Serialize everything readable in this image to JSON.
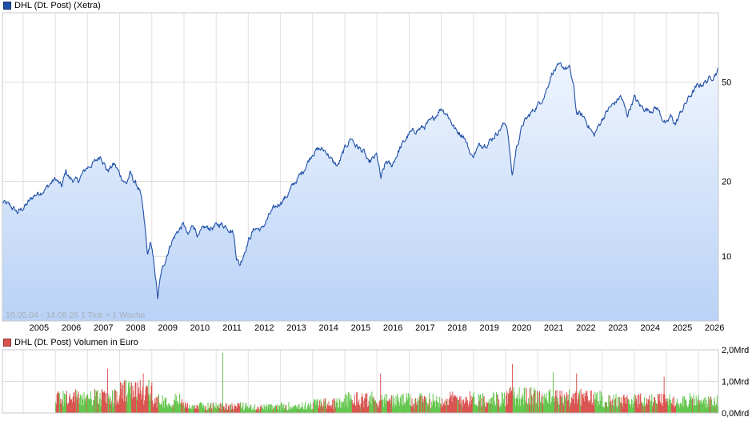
{
  "chart_data": [
    {
      "type": "area",
      "series": [
        {
          "name": "DHL (Dt. Post) (Xetra)",
          "color": "#1f4fa8",
          "points": [
            [
              "2004-05-10",
              16.5
            ],
            [
              "2004-08-01",
              16.0
            ],
            [
              "2004-11-01",
              15.0
            ],
            [
              "2005-02-01",
              16.0
            ],
            [
              "2005-05-01",
              17.5
            ],
            [
              "2005-09-01",
              18.5
            ],
            [
              "2006-01-01",
              20.5
            ],
            [
              "2006-03-15",
              19.0
            ],
            [
              "2006-05-01",
              22.0
            ],
            [
              "2006-06-15",
              20.5
            ],
            [
              "2006-09-15",
              20.0
            ],
            [
              "2006-12-15",
              22.5
            ],
            [
              "2007-04-01",
              24.0
            ],
            [
              "2007-06-01",
              25.5
            ],
            [
              "2007-08-15",
              22.0
            ],
            [
              "2007-11-01",
              23.5
            ],
            [
              "2008-01-15",
              21.0
            ],
            [
              "2008-03-15",
              19.5
            ],
            [
              "2008-05-01",
              21.5
            ],
            [
              "2008-06-15",
              20.0
            ],
            [
              "2008-08-15",
              18.5
            ],
            [
              "2008-09-15",
              16.0
            ],
            [
              "2008-10-15",
              13.0
            ],
            [
              "2008-11-15",
              10.0
            ],
            [
              "2008-12-15",
              11.5
            ],
            [
              "2009-02-01",
              9.0
            ],
            [
              "2009-03-09",
              6.8
            ],
            [
              "2009-04-15",
              8.5
            ],
            [
              "2009-06-15",
              10.0
            ],
            [
              "2009-08-15",
              11.5
            ],
            [
              "2009-10-15",
              12.5
            ],
            [
              "2009-12-31",
              13.5
            ],
            [
              "2010-02-15",
              12.0
            ],
            [
              "2010-04-15",
              13.5
            ],
            [
              "2010-06-15",
              12.0
            ],
            [
              "2010-08-15",
              13.0
            ],
            [
              "2010-11-15",
              13.0
            ],
            [
              "2011-02-15",
              13.5
            ],
            [
              "2011-05-01",
              13.2
            ],
            [
              "2011-07-15",
              12.5
            ],
            [
              "2011-08-20",
              10.0
            ],
            [
              "2011-09-25",
              9.2
            ],
            [
              "2011-12-31",
              11.5
            ],
            [
              "2012-03-15",
              13.0
            ],
            [
              "2012-06-01",
              12.8
            ],
            [
              "2012-09-15",
              15.0
            ],
            [
              "2012-12-31",
              16.5
            ],
            [
              "2013-03-15",
              17.5
            ],
            [
              "2013-06-01",
              19.5
            ],
            [
              "2013-09-15",
              22.0
            ],
            [
              "2013-12-31",
              26.0
            ],
            [
              "2014-03-15",
              27.0
            ],
            [
              "2014-06-01",
              26.5
            ],
            [
              "2014-08-15",
              24.0
            ],
            [
              "2014-10-15",
              23.0
            ],
            [
              "2014-12-31",
              27.0
            ],
            [
              "2015-03-15",
              30.0
            ],
            [
              "2015-05-01",
              28.0
            ],
            [
              "2015-08-15",
              26.0
            ],
            [
              "2015-09-25",
              23.5
            ],
            [
              "2015-12-31",
              25.5
            ],
            [
              "2016-02-15",
              20.5
            ],
            [
              "2016-04-15",
              24.0
            ],
            [
              "2016-06-15",
              23.0
            ],
            [
              "2016-09-15",
              27.0
            ],
            [
              "2016-12-31",
              31.0
            ],
            [
              "2017-03-15",
              32.0
            ],
            [
              "2017-06-15",
              33.0
            ],
            [
              "2017-09-15",
              35.0
            ],
            [
              "2017-12-31",
              39.5
            ],
            [
              "2018-03-15",
              37.0
            ],
            [
              "2018-06-15",
              32.0
            ],
            [
              "2018-09-15",
              30.5
            ],
            [
              "2018-12-15",
              25.0
            ],
            [
              "2019-03-15",
              28.0
            ],
            [
              "2019-06-15",
              28.5
            ],
            [
              "2019-09-15",
              31.0
            ],
            [
              "2019-12-31",
              34.5
            ],
            [
              "2020-01-20",
              33.0
            ],
            [
              "2020-03-16",
              21.0
            ],
            [
              "2020-05-01",
              27.0
            ],
            [
              "2020-07-15",
              34.0
            ],
            [
              "2020-10-15",
              37.5
            ],
            [
              "2020-12-31",
              40.5
            ],
            [
              "2021-03-15",
              44.0
            ],
            [
              "2021-06-15",
              55.0
            ],
            [
              "2021-09-15",
              58.0
            ],
            [
              "2021-12-31",
              56.5
            ],
            [
              "2022-02-15",
              47.0
            ],
            [
              "2022-03-15",
              38.0
            ],
            [
              "2022-06-15",
              36.0
            ],
            [
              "2022-09-30",
              30.5
            ],
            [
              "2022-12-31",
              35.5
            ],
            [
              "2023-03-15",
              39.0
            ],
            [
              "2023-06-15",
              42.0
            ],
            [
              "2023-08-01",
              44.0
            ],
            [
              "2023-10-15",
              37.0
            ],
            [
              "2023-12-31",
              43.5
            ],
            [
              "2024-03-15",
              40.0
            ],
            [
              "2024-06-15",
              38.5
            ],
            [
              "2024-09-15",
              39.5
            ],
            [
              "2024-12-31",
              33.5
            ],
            [
              "2025-02-15",
              36.5
            ],
            [
              "2025-04-15",
              34.0
            ],
            [
              "2025-06-15",
              38.0
            ],
            [
              "2025-09-15",
              43.5
            ],
            [
              "2025-12-15",
              48.0
            ],
            [
              "2026-03-15",
              50.0
            ],
            [
              "2026-06-15",
              53.0
            ],
            [
              "2026-08-14",
              56.0
            ]
          ]
        }
      ],
      "x_range": [
        "2004-05-10",
        "2026-08-14"
      ],
      "x_tick_labels": [
        "2005",
        "2006",
        "2007",
        "2008",
        "2009",
        "2010",
        "2011",
        "2012",
        "2013",
        "2014",
        "2015",
        "2016",
        "2017",
        "2018",
        "2019",
        "2020",
        "2021",
        "2022",
        "2023",
        "2024",
        "2025",
        "2026"
      ],
      "y_scale": "log",
      "y_range": [
        5.5,
        95
      ],
      "y_ticks": [
        10,
        20,
        50
      ],
      "y_tick_labels": [
        "10",
        "20",
        "50"
      ],
      "grid": true,
      "legend_position": "top-left",
      "annotation": "10.05.04 - 14.08.26   1 Tick = 1 Woche",
      "fill_top_color": "#eef4fe",
      "fill_bottom_color": "#b9d2f6"
    },
    {
      "type": "bar",
      "series": [
        {
          "name": "DHL (Dt. Post) Volumen in Euro",
          "color_up": "#63c64c",
          "color_down": "#d9534f"
        }
      ],
      "volume_start": "2006-01-01",
      "volume_range_mrd": [
        0.0,
        2.0
      ],
      "y_tick_labels": [
        "2,0Mrd",
        "1,0Mrd",
        "0,0Mrd"
      ],
      "y_ticks": [
        2.0,
        1.0,
        0.0
      ],
      "volume_profile": [
        [
          "2006",
          0.55
        ],
        [
          "2007",
          0.55
        ],
        [
          "2008",
          0.75
        ],
        [
          "2009",
          0.45
        ],
        [
          "2010",
          0.25
        ],
        [
          "2011",
          0.25
        ],
        [
          "2012",
          0.2
        ],
        [
          "2013",
          0.25
        ],
        [
          "2014",
          0.35
        ],
        [
          "2015",
          0.5
        ],
        [
          "2016",
          0.45
        ],
        [
          "2017",
          0.45
        ],
        [
          "2018",
          0.5
        ],
        [
          "2019",
          0.5
        ],
        [
          "2020",
          0.6
        ],
        [
          "2021",
          0.55
        ],
        [
          "2022",
          0.55
        ],
        [
          "2023",
          0.45
        ],
        [
          "2024",
          0.45
        ],
        [
          "2025",
          0.45
        ],
        [
          "2026",
          0.4
        ]
      ],
      "volume_spikes": [
        [
          "2007-08-10",
          1.4
        ],
        [
          "2008-09-20",
          1.25
        ],
        [
          "2011-03-15",
          1.9
        ],
        [
          "2016-02-10",
          1.25
        ],
        [
          "2020-03-15",
          1.55
        ],
        [
          "2021-06-20",
          1.3
        ],
        [
          "2022-03-10",
          1.25
        ],
        [
          "2024-12-01",
          1.15
        ]
      ],
      "grid": true,
      "legend_position": "top-left"
    }
  ]
}
